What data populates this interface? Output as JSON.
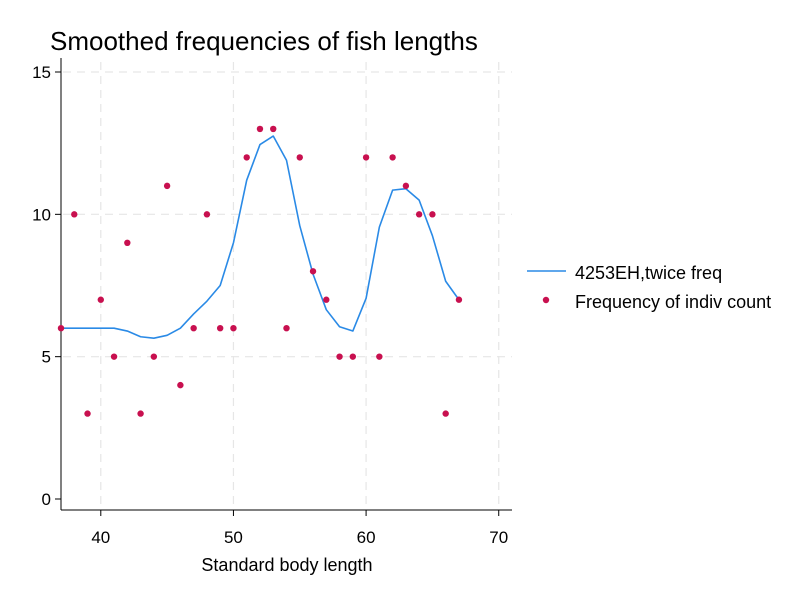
{
  "chart_data": {
    "type": "line",
    "title": "Smoothed frequencies of fish lengths",
    "xlabel": "Standard body length",
    "ylabel": "",
    "xlim": [
      37,
      71
    ],
    "ylim": [
      0,
      15.5
    ],
    "x_ticks": [
      "40",
      "50",
      "60",
      "70"
    ],
    "y_ticks": [
      "0",
      "5",
      "10",
      "15"
    ],
    "grid": true,
    "legend_position": "right",
    "series": [
      {
        "name": "4253EH,twice freq",
        "kind": "line",
        "color": "#2a8ae6",
        "x": [
          37,
          38,
          39,
          40,
          41,
          42,
          43,
          44,
          45,
          46,
          47,
          48,
          49,
          50,
          51,
          52,
          53,
          54,
          55,
          56,
          57,
          58,
          59,
          60,
          61,
          62,
          63,
          64,
          65,
          66,
          67
        ],
        "y": [
          6,
          6,
          6,
          6,
          6,
          5.9,
          5.7,
          5.65,
          5.75,
          6,
          6.5,
          6.95,
          7.5,
          9,
          11.2,
          12.45,
          12.75,
          11.9,
          9.6,
          7.9,
          6.65,
          6.05,
          5.9,
          7.05,
          9.55,
          10.85,
          10.9,
          10.5,
          9.25,
          7.65,
          7
        ]
      },
      {
        "name": "Frequency of indiv count",
        "kind": "scatter",
        "color": "#c8104f",
        "x": [
          37,
          38,
          39,
          40,
          41,
          42,
          43,
          44,
          45,
          46,
          47,
          48,
          49,
          50,
          51,
          52,
          53,
          54,
          55,
          56,
          57,
          58,
          59,
          60,
          61,
          62,
          63,
          64,
          65,
          66,
          67
        ],
        "y": [
          6,
          10,
          3,
          7,
          5,
          9,
          3,
          5,
          11,
          4,
          6,
          10,
          6,
          6,
          12,
          13,
          13,
          6,
          12,
          8,
          7,
          5,
          5,
          12,
          5,
          12,
          11,
          10,
          10,
          3,
          7
        ]
      }
    ]
  }
}
